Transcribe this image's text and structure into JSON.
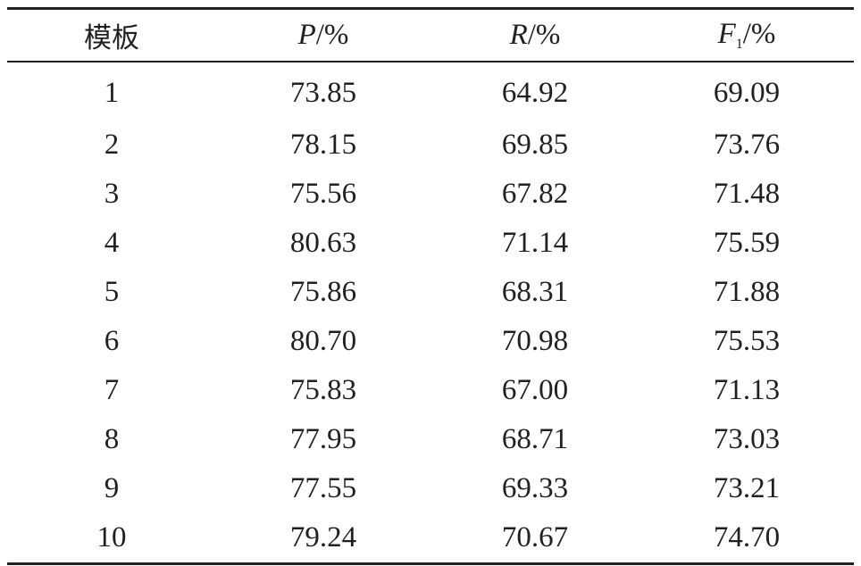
{
  "table": {
    "headers": {
      "template": "模板",
      "precision_var": "P",
      "recall_var": "R",
      "f1_var": "F",
      "f1_sub": "1",
      "unit": "/%"
    },
    "rows": [
      {
        "template": "1",
        "p": "73.85",
        "r": "64.92",
        "f1": "69.09"
      },
      {
        "template": "2",
        "p": "78.15",
        "r": "69.85",
        "f1": "73.76"
      },
      {
        "template": "3",
        "p": "75.56",
        "r": "67.82",
        "f1": "71.48"
      },
      {
        "template": "4",
        "p": "80.63",
        "r": "71.14",
        "f1": "75.59"
      },
      {
        "template": "5",
        "p": "75.86",
        "r": "68.31",
        "f1": "71.88"
      },
      {
        "template": "6",
        "p": "80.70",
        "r": "70.98",
        "f1": "75.53"
      },
      {
        "template": "7",
        "p": "75.83",
        "r": "67.00",
        "f1": "71.13"
      },
      {
        "template": "8",
        "p": "77.95",
        "r": "68.71",
        "f1": "73.03"
      },
      {
        "template": "9",
        "p": "77.55",
        "r": "69.33",
        "f1": "73.21"
      },
      {
        "template": "10",
        "p": "79.24",
        "r": "70.67",
        "f1": "74.70"
      }
    ]
  }
}
